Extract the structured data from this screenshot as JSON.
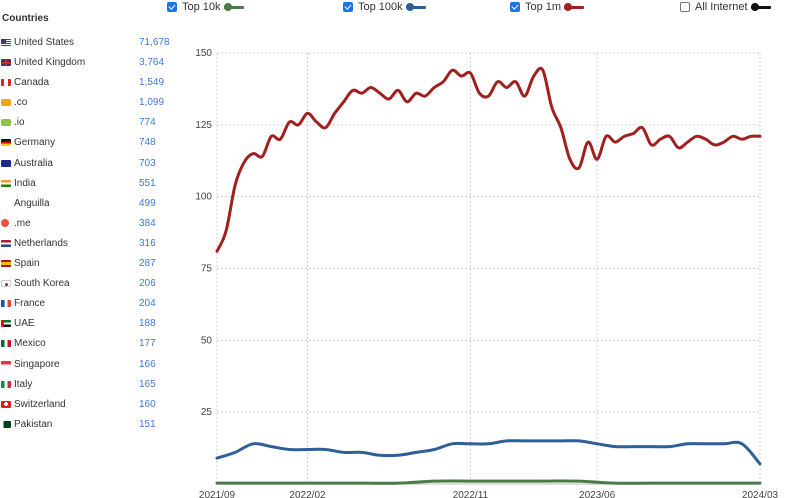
{
  "sidebar": {
    "title": "Countries",
    "countries": [
      {
        "flag": "us",
        "name": "United States",
        "count": "71,678"
      },
      {
        "flag": "uk",
        "name": "United Kingdom",
        "count": "3,764"
      },
      {
        "flag": "ca",
        "name": "Canada",
        "count": "1,549"
      },
      {
        "flag": "co",
        "name": ".co",
        "count": "1,099"
      },
      {
        "flag": "io",
        "name": ".io",
        "count": "774"
      },
      {
        "flag": "de",
        "name": "Germany",
        "count": "748"
      },
      {
        "flag": "au",
        "name": "Australia",
        "count": "703"
      },
      {
        "flag": "in",
        "name": "India",
        "count": "551"
      },
      {
        "flag": "ai",
        "name": "Anguilla",
        "count": "499"
      },
      {
        "flag": "me",
        "name": ".me",
        "count": "384"
      },
      {
        "flag": "nl",
        "name": "Netherlands",
        "count": "316"
      },
      {
        "flag": "es",
        "name": "Spain",
        "count": "287"
      },
      {
        "flag": "kr",
        "name": "South Korea",
        "count": "206"
      },
      {
        "flag": "fr",
        "name": "France",
        "count": "204"
      },
      {
        "flag": "ae",
        "name": "UAE",
        "count": "188"
      },
      {
        "flag": "mx",
        "name": "Mexico",
        "count": "177"
      },
      {
        "flag": "sg",
        "name": "Singapore",
        "count": "166"
      },
      {
        "flag": "it",
        "name": "Italy",
        "count": "165"
      },
      {
        "flag": "ch",
        "name": "Switzerland",
        "count": "160"
      },
      {
        "flag": "pk",
        "name": "Pakistan",
        "count": "151"
      }
    ]
  },
  "legend": {
    "items": [
      {
        "label": "Top 10k",
        "checked": true,
        "color": "#4a7a48",
        "key": "top10k"
      },
      {
        "label": "Top 100k",
        "checked": true,
        "color": "#2f5f97",
        "key": "top100k"
      },
      {
        "label": "Top 1m",
        "checked": true,
        "color": "#a01f1f",
        "key": "top1m"
      },
      {
        "label": "All Internet",
        "checked": false,
        "color": "#111111",
        "key": "all"
      }
    ]
  },
  "chart_data": {
    "type": "line",
    "ylim": [
      0,
      150
    ],
    "yticks": [
      25,
      50,
      75,
      100,
      125,
      150
    ],
    "xtick_labels": [
      "2021/09",
      "2022/02",
      "2022/11",
      "2023/06",
      "2024/03"
    ],
    "xtick_positions": [
      0,
      5,
      14,
      21,
      30
    ],
    "grid": true,
    "series": [
      {
        "name": "Top 1m",
        "color": "#a01f1f",
        "x": [
          0,
          0.5,
          1,
          1.5,
          2,
          2.5,
          3,
          3.5,
          4,
          4.5,
          5,
          5.5,
          6,
          6.5,
          7,
          7.5,
          8,
          8.5,
          9,
          9.5,
          10,
          10.5,
          11,
          11.5,
          12,
          12.5,
          13,
          13.5,
          14,
          14.5,
          15,
          15.5,
          16,
          16.5,
          17,
          17.5,
          18,
          18.5,
          19,
          19.5,
          20,
          20.5,
          21,
          21.5,
          22,
          22.5,
          23,
          23.5,
          24,
          24.5,
          25,
          25.5,
          26,
          26.5,
          27,
          27.5,
          28,
          28.5,
          29,
          29.5,
          30
        ],
        "y": [
          81,
          88,
          104,
          112,
          115,
          114,
          121,
          120,
          126,
          125,
          129,
          126,
          124,
          129,
          133,
          137,
          136,
          138,
          136,
          134,
          137,
          133,
          136,
          135,
          138,
          140,
          144,
          142,
          143,
          136,
          135,
          140,
          138,
          140,
          135,
          142,
          144,
          131,
          124,
          113,
          110,
          119,
          113,
          121,
          119,
          121,
          122,
          124,
          118,
          120,
          121,
          117,
          119,
          121,
          120,
          118,
          119,
          121,
          120,
          121,
          121
        ]
      },
      {
        "name": "Top 100k",
        "color": "#2f5f97",
        "x": [
          0,
          1,
          2,
          3,
          4,
          5,
          6,
          7,
          8,
          9,
          10,
          11,
          12,
          13,
          14,
          15,
          16,
          17,
          18,
          19,
          20,
          21,
          22,
          23,
          24,
          25,
          26,
          27,
          28,
          29,
          30
        ],
        "y": [
          9,
          11,
          14,
          13,
          12,
          12,
          12,
          11,
          11,
          10,
          10,
          11,
          12,
          14,
          14,
          14,
          15,
          15,
          15,
          15,
          15,
          14,
          13,
          13,
          13,
          13,
          14,
          14,
          14,
          14,
          7
        ]
      },
      {
        "name": "Top 10k",
        "color": "#4a7a48",
        "x": [
          0,
          2,
          4,
          6,
          8,
          10,
          12,
          14,
          16,
          18,
          20,
          22,
          24,
          26,
          28,
          30
        ],
        "y": [
          0.3,
          0.3,
          0.3,
          0.3,
          0.3,
          0.3,
          1,
          1,
          1,
          1,
          1,
          0.3,
          0.3,
          0.3,
          0.3,
          0.3
        ]
      }
    ]
  }
}
